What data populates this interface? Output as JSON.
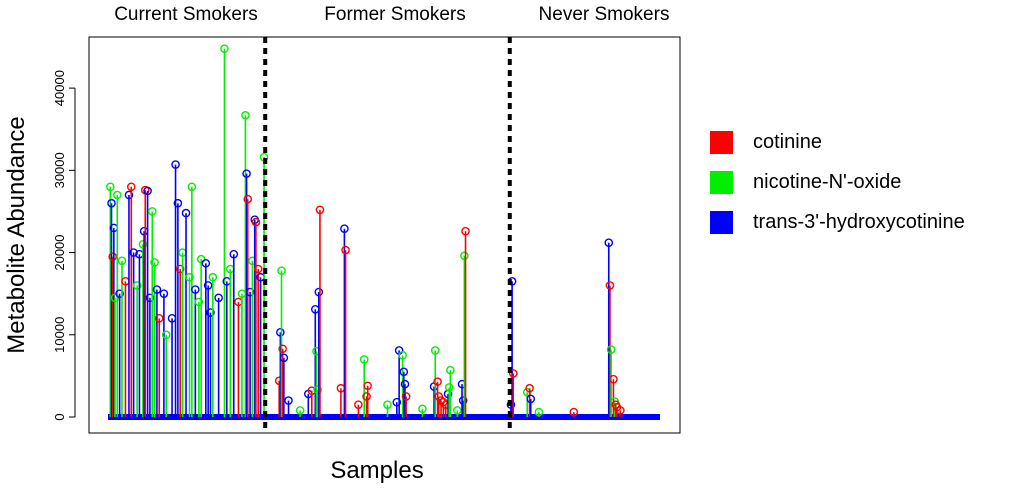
{
  "chart_data": {
    "type": "line",
    "subtype": "vertical-lines-with-open-circle-markers",
    "ylabel": "Metabolite Abundance",
    "xlabel": "Samples",
    "ylim": [
      0,
      45000
    ],
    "y_ticks": [
      0,
      10000,
      20000,
      30000,
      40000
    ],
    "group_labels": [
      "Current Smokers",
      "Former Smokers",
      "Never Smokers"
    ],
    "group_boundaries": [
      135,
      345
    ],
    "n_samples": 475,
    "series": [
      {
        "name": "cotinine",
        "color": "#ff0000"
      },
      {
        "name": "nicotine-N'-oxide",
        "color": "#00ee00"
      },
      {
        "name": "trans-3'-hydroxycotinine",
        "color": "#0000ff"
      }
    ],
    "spikes": [
      {
        "x": 2,
        "y": 28000,
        "series": 1
      },
      {
        "x": 3,
        "y": 26000,
        "series": 2
      },
      {
        "x": 4,
        "y": 19500,
        "series": 0
      },
      {
        "x": 5,
        "y": 23000,
        "series": 2
      },
      {
        "x": 6,
        "y": 14500,
        "series": 1
      },
      {
        "x": 8,
        "y": 27000,
        "series": 1
      },
      {
        "x": 10,
        "y": 15000,
        "series": 2
      },
      {
        "x": 12,
        "y": 19000,
        "series": 1
      },
      {
        "x": 15,
        "y": 16500,
        "series": 0
      },
      {
        "x": 18,
        "y": 27000,
        "series": 2
      },
      {
        "x": 20,
        "y": 28000,
        "series": 0
      },
      {
        "x": 22,
        "y": 20000,
        "series": 2
      },
      {
        "x": 25,
        "y": 16000,
        "series": 1
      },
      {
        "x": 27,
        "y": 19800,
        "series": 2
      },
      {
        "x": 30,
        "y": 21000,
        "series": 1
      },
      {
        "x": 31,
        "y": 22600,
        "series": 2
      },
      {
        "x": 32,
        "y": 27600,
        "series": 0
      },
      {
        "x": 34,
        "y": 27500,
        "series": 2
      },
      {
        "x": 36,
        "y": 14500,
        "series": 2
      },
      {
        "x": 38,
        "y": 25000,
        "series": 1
      },
      {
        "x": 40,
        "y": 18800,
        "series": 1
      },
      {
        "x": 42,
        "y": 15500,
        "series": 2
      },
      {
        "x": 44,
        "y": 12000,
        "series": 0
      },
      {
        "x": 48,
        "y": 15000,
        "series": 2
      },
      {
        "x": 50,
        "y": 10000,
        "series": 1
      },
      {
        "x": 55,
        "y": 12000,
        "series": 2
      },
      {
        "x": 58,
        "y": 30700,
        "series": 2
      },
      {
        "x": 60,
        "y": 26000,
        "series": 2
      },
      {
        "x": 62,
        "y": 18000,
        "series": 0
      },
      {
        "x": 64,
        "y": 20000,
        "series": 1
      },
      {
        "x": 67,
        "y": 24800,
        "series": 2
      },
      {
        "x": 70,
        "y": 17000,
        "series": 1
      },
      {
        "x": 72,
        "y": 28000,
        "series": 1
      },
      {
        "x": 75,
        "y": 15500,
        "series": 2
      },
      {
        "x": 78,
        "y": 14000,
        "series": 1
      },
      {
        "x": 80,
        "y": 19200,
        "series": 1
      },
      {
        "x": 84,
        "y": 18700,
        "series": 2
      },
      {
        "x": 86,
        "y": 16000,
        "series": 2
      },
      {
        "x": 88,
        "y": 12700,
        "series": 2
      },
      {
        "x": 90,
        "y": 17000,
        "series": 1
      },
      {
        "x": 95,
        "y": 14500,
        "series": 2
      },
      {
        "x": 100,
        "y": 44800,
        "series": 1
      },
      {
        "x": 102,
        "y": 16500,
        "series": 2
      },
      {
        "x": 105,
        "y": 18000,
        "series": 1
      },
      {
        "x": 108,
        "y": 19800,
        "series": 2
      },
      {
        "x": 112,
        "y": 14000,
        "series": 0
      },
      {
        "x": 115,
        "y": 15000,
        "series": 1
      },
      {
        "x": 118,
        "y": 36700,
        "series": 1
      },
      {
        "x": 119,
        "y": 29600,
        "series": 2
      },
      {
        "x": 120,
        "y": 26500,
        "series": 0
      },
      {
        "x": 122,
        "y": 15200,
        "series": 2
      },
      {
        "x": 124,
        "y": 19000,
        "series": 1
      },
      {
        "x": 126,
        "y": 24000,
        "series": 2
      },
      {
        "x": 127,
        "y": 23700,
        "series": 0
      },
      {
        "x": 129,
        "y": 18000,
        "series": 0
      },
      {
        "x": 131,
        "y": 17000,
        "series": 2
      },
      {
        "x": 134,
        "y": 31600,
        "series": 1
      },
      {
        "x": 147,
        "y": 4400,
        "series": 0
      },
      {
        "x": 148,
        "y": 10300,
        "series": 2
      },
      {
        "x": 149,
        "y": 17800,
        "series": 1
      },
      {
        "x": 150,
        "y": 8300,
        "series": 0
      },
      {
        "x": 151,
        "y": 7200,
        "series": 2
      },
      {
        "x": 155,
        "y": 2000,
        "series": 2
      },
      {
        "x": 165,
        "y": 800,
        "series": 1
      },
      {
        "x": 172,
        "y": 2800,
        "series": 2
      },
      {
        "x": 175,
        "y": 3200,
        "series": 0
      },
      {
        "x": 178,
        "y": 13100,
        "series": 2
      },
      {
        "x": 179,
        "y": 8000,
        "series": 1
      },
      {
        "x": 180,
        "y": 3300,
        "series": 1
      },
      {
        "x": 181,
        "y": 15200,
        "series": 2
      },
      {
        "x": 182,
        "y": 25200,
        "series": 0
      },
      {
        "x": 200,
        "y": 3500,
        "series": 0
      },
      {
        "x": 203,
        "y": 22900,
        "series": 2
      },
      {
        "x": 204,
        "y": 20300,
        "series": 0
      },
      {
        "x": 215,
        "y": 1500,
        "series": 0
      },
      {
        "x": 220,
        "y": 7000,
        "series": 1
      },
      {
        "x": 222,
        "y": 2500,
        "series": 0
      },
      {
        "x": 223,
        "y": 3800,
        "series": 0
      },
      {
        "x": 240,
        "y": 1500,
        "series": 1
      },
      {
        "x": 248,
        "y": 1800,
        "series": 2
      },
      {
        "x": 250,
        "y": 8100,
        "series": 2
      },
      {
        "x": 253,
        "y": 7500,
        "series": 1
      },
      {
        "x": 254,
        "y": 5500,
        "series": 2
      },
      {
        "x": 255,
        "y": 4000,
        "series": 2
      },
      {
        "x": 256,
        "y": 2500,
        "series": 0
      },
      {
        "x": 270,
        "y": 1000,
        "series": 1
      },
      {
        "x": 280,
        "y": 3700,
        "series": 2
      },
      {
        "x": 281,
        "y": 8100,
        "series": 1
      },
      {
        "x": 283,
        "y": 4300,
        "series": 0
      },
      {
        "x": 284,
        "y": 2500,
        "series": 0
      },
      {
        "x": 286,
        "y": 2000,
        "series": 0
      },
      {
        "x": 288,
        "y": 1800,
        "series": 0
      },
      {
        "x": 290,
        "y": 1500,
        "series": 0
      },
      {
        "x": 292,
        "y": 2800,
        "series": 2
      },
      {
        "x": 293,
        "y": 3600,
        "series": 1
      },
      {
        "x": 294,
        "y": 5700,
        "series": 1
      },
      {
        "x": 300,
        "y": 800,
        "series": 1
      },
      {
        "x": 304,
        "y": 4000,
        "series": 2
      },
      {
        "x": 305,
        "y": 2000,
        "series": 2
      },
      {
        "x": 306,
        "y": 19600,
        "series": 1
      },
      {
        "x": 307,
        "y": 22600,
        "series": 0
      },
      {
        "x": 346,
        "y": 1500,
        "series": 2
      },
      {
        "x": 347,
        "y": 16500,
        "series": 2
      },
      {
        "x": 348,
        "y": 5300,
        "series": 0
      },
      {
        "x": 360,
        "y": 3000,
        "series": 1
      },
      {
        "x": 362,
        "y": 3500,
        "series": 0
      },
      {
        "x": 363,
        "y": 2200,
        "series": 2
      },
      {
        "x": 370,
        "y": 600,
        "series": 1
      },
      {
        "x": 400,
        "y": 600,
        "series": 0
      },
      {
        "x": 430,
        "y": 21200,
        "series": 2
      },
      {
        "x": 431,
        "y": 16000,
        "series": 0
      },
      {
        "x": 432,
        "y": 8200,
        "series": 1
      },
      {
        "x": 434,
        "y": 4600,
        "series": 0
      },
      {
        "x": 435,
        "y": 1900,
        "series": 1
      },
      {
        "x": 436,
        "y": 1500,
        "series": 0
      },
      {
        "x": 437,
        "y": 1200,
        "series": 0
      },
      {
        "x": 440,
        "y": 800,
        "series": 0
      }
    ]
  }
}
